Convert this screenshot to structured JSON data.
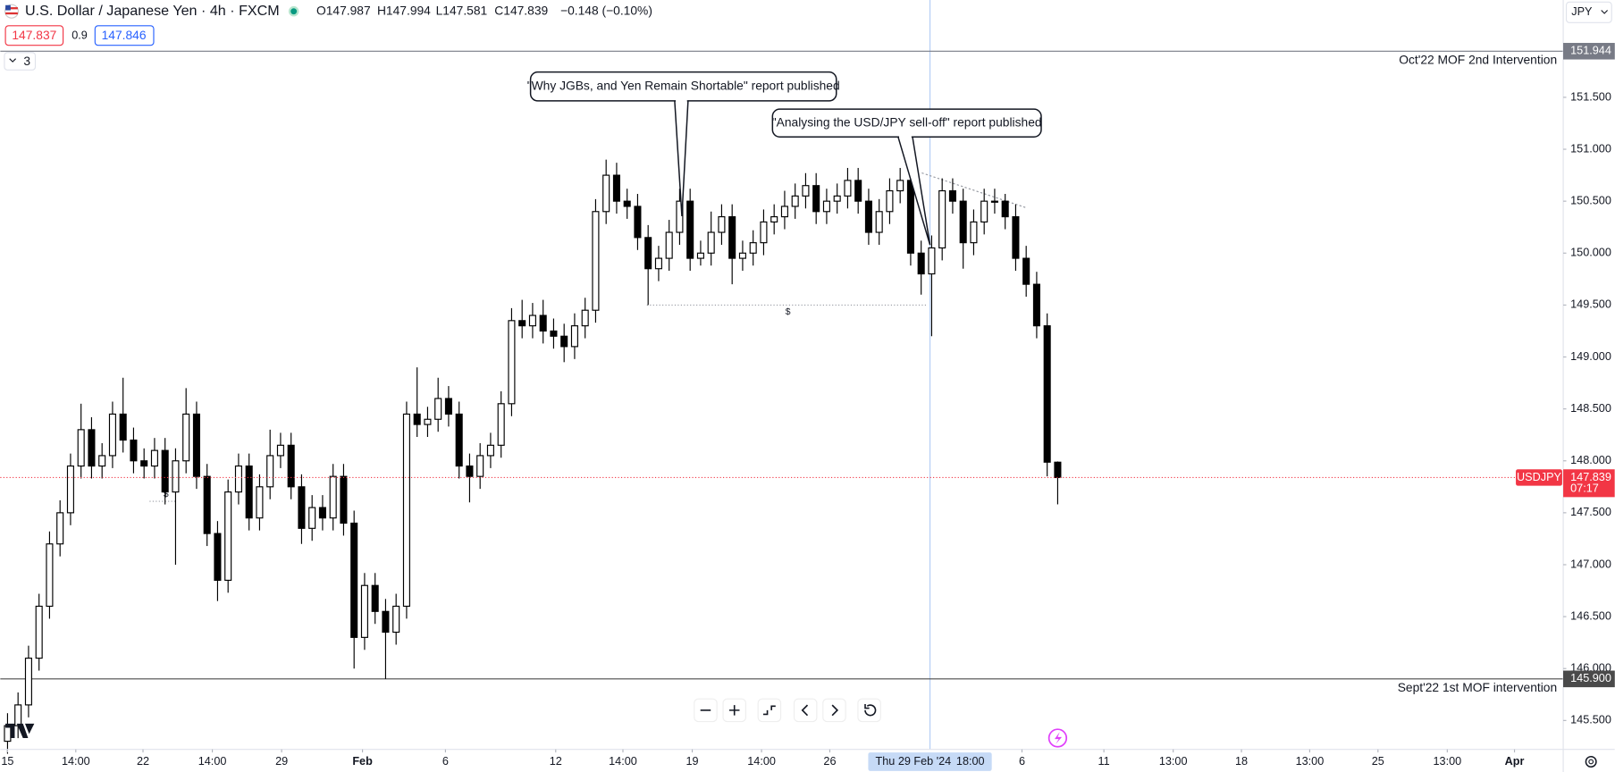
{
  "chart_data": {
    "type": "candlestick",
    "title": "U.S. Dollar / Japanese Yen · 4h · FXCM",
    "ohlc_text": [
      "O147.987",
      "H147.994",
      "L147.581",
      "C147.839",
      "−0.148 (−0.10%)"
    ],
    "quote_buttons": [
      "147.837",
      "0.9",
      "147.846"
    ],
    "indicator_count": "3",
    "currency": "JPY",
    "up_color": "#ffffff",
    "down_color": "#000000",
    "wick_color": "#000000",
    "open": [
      145.3,
      145.45,
      145.65,
      146.1,
      146.6,
      147.2,
      147.5,
      147.95,
      148.3,
      147.95,
      148.05,
      148.45,
      148.2,
      148.0,
      147.95,
      148.1,
      147.7,
      148.0,
      148.45,
      147.85,
      147.3,
      146.85,
      147.7,
      147.95,
      147.45,
      147.75,
      148.05,
      148.15,
      147.75,
      147.35,
      147.55,
      147.45,
      147.85,
      147.4,
      146.3,
      146.8,
      146.55,
      146.35,
      146.6,
      148.45,
      148.35,
      148.4,
      148.6,
      148.45,
      147.95,
      147.85,
      148.05,
      148.15,
      148.55,
      149.35,
      149.3,
      149.4,
      149.25,
      149.2,
      149.1,
      149.3,
      149.45,
      150.4,
      150.75,
      150.5,
      150.45,
      150.15,
      149.85,
      149.95,
      150.2,
      150.5,
      149.95,
      150.0,
      150.2,
      150.35,
      149.95,
      150.0,
      150.1,
      150.3,
      150.35,
      150.45,
      150.55,
      150.65,
      150.4,
      150.5,
      150.55,
      150.7,
      150.5,
      150.2,
      150.4,
      150.6,
      150.7,
      150.0,
      149.8,
      150.05,
      150.6,
      150.5,
      150.1,
      150.3,
      150.5,
      150.5,
      150.35,
      149.95,
      149.7,
      149.3,
      147.987
    ],
    "high": [
      145.57,
      145.77,
      146.22,
      146.72,
      147.32,
      147.62,
      148.07,
      148.55,
      148.42,
      148.17,
      148.57,
      148.8,
      148.32,
      148.12,
      148.22,
      148.22,
      148.12,
      148.7,
      148.57,
      147.97,
      147.42,
      147.82,
      148.07,
      148.07,
      147.87,
      148.3,
      148.27,
      148.27,
      147.87,
      147.67,
      147.67,
      147.97,
      147.97,
      147.52,
      146.92,
      146.92,
      146.67,
      146.72,
      148.57,
      148.9,
      148.52,
      148.8,
      148.72,
      148.57,
      148.07,
      148.17,
      148.27,
      148.67,
      149.47,
      149.55,
      149.52,
      149.55,
      149.37,
      149.32,
      149.42,
      149.57,
      150.52,
      150.9,
      150.87,
      150.62,
      150.57,
      150.27,
      150.07,
      150.32,
      150.62,
      150.62,
      150.12,
      150.4,
      150.47,
      150.47,
      150.12,
      150.22,
      150.42,
      150.47,
      150.6,
      150.67,
      150.77,
      150.77,
      150.62,
      150.67,
      150.82,
      150.82,
      150.62,
      150.52,
      150.72,
      150.82,
      150.82,
      150.12,
      150.17,
      150.72,
      150.72,
      150.62,
      150.42,
      150.62,
      150.62,
      150.57,
      150.47,
      150.07,
      149.82,
      149.42,
      147.994
    ],
    "low": [
      145.18,
      145.33,
      145.53,
      145.98,
      146.48,
      147.08,
      147.38,
      147.83,
      147.83,
      147.83,
      147.93,
      148.08,
      147.88,
      147.83,
      147.83,
      147.58,
      147.0,
      147.88,
      147.73,
      147.18,
      146.65,
      146.73,
      147.58,
      147.33,
      147.33,
      147.63,
      147.93,
      147.63,
      147.2,
      147.23,
      147.33,
      147.33,
      147.28,
      146.0,
      146.18,
      146.43,
      145.9,
      146.23,
      146.48,
      148.23,
      148.23,
      148.28,
      148.33,
      147.83,
      147.6,
      147.73,
      147.93,
      148.03,
      148.43,
      149.18,
      149.18,
      149.13,
      149.08,
      148.95,
      148.98,
      149.18,
      149.33,
      150.28,
      150.38,
      150.33,
      150.03,
      149.5,
      149.73,
      149.83,
      150.08,
      149.83,
      149.88,
      149.88,
      150.08,
      149.7,
      149.83,
      149.88,
      149.98,
      150.18,
      150.23,
      150.33,
      150.43,
      150.28,
      150.28,
      150.38,
      150.43,
      150.38,
      150.08,
      150.08,
      150.28,
      150.48,
      149.88,
      149.6,
      149.2,
      149.93,
      150.38,
      149.85,
      149.98,
      150.18,
      150.38,
      150.23,
      149.83,
      149.58,
      149.18,
      147.85,
      147.581
    ],
    "close": [
      145.45,
      145.65,
      146.1,
      146.6,
      147.2,
      147.5,
      147.95,
      148.3,
      147.95,
      148.05,
      148.45,
      148.2,
      148.0,
      147.95,
      148.1,
      147.7,
      148.0,
      148.45,
      147.85,
      147.3,
      146.85,
      147.7,
      147.95,
      147.45,
      147.75,
      148.05,
      148.15,
      147.75,
      147.35,
      147.55,
      147.45,
      147.85,
      147.4,
      146.3,
      146.8,
      146.55,
      146.35,
      146.6,
      148.45,
      148.35,
      148.4,
      148.6,
      148.45,
      147.95,
      147.85,
      148.05,
      148.15,
      148.55,
      149.35,
      149.3,
      149.4,
      149.25,
      149.2,
      149.1,
      149.3,
      149.45,
      150.4,
      150.75,
      150.5,
      150.45,
      150.15,
      149.85,
      149.95,
      150.2,
      150.5,
      149.95,
      150.0,
      150.2,
      150.35,
      149.95,
      150.0,
      150.1,
      150.3,
      150.35,
      150.45,
      150.55,
      150.65,
      150.4,
      150.5,
      150.55,
      150.7,
      150.5,
      150.2,
      150.4,
      150.6,
      150.7,
      150.0,
      149.8,
      150.05,
      150.6,
      150.5,
      150.1,
      150.3,
      150.5,
      150.5,
      150.35,
      149.95,
      149.7,
      149.3,
      147.987,
      147.839
    ],
    "xlim": [
      -0.69,
      148.14
    ],
    "xticks": [
      {
        "value": 0,
        "label": "15"
      },
      {
        "value": 6.5,
        "label": "14:00"
      },
      {
        "value": 12.9,
        "label": "22"
      },
      {
        "value": 19.5,
        "label": "14:00"
      },
      {
        "value": 26.1,
        "label": "29"
      },
      {
        "value": 33.8,
        "label": "Feb"
      },
      {
        "value": 41.7,
        "label": "6"
      },
      {
        "value": 52.2,
        "label": "12"
      },
      {
        "value": 58.6,
        "label": "14:00"
      },
      {
        "value": 65.2,
        "label": "19"
      },
      {
        "value": 71.8,
        "label": "14:00"
      },
      {
        "value": 78.3,
        "label": "26"
      },
      {
        "value": 96.6,
        "label": "6"
      },
      {
        "value": 104.4,
        "label": "11"
      },
      {
        "value": 111,
        "label": "13:00"
      },
      {
        "value": 117.5,
        "label": "18"
      },
      {
        "value": 124,
        "label": "13:00"
      },
      {
        "value": 130.5,
        "label": "25"
      },
      {
        "value": 137.1,
        "label": "13:00"
      },
      {
        "value": 143.5,
        "label": "Apr"
      }
    ],
    "ylim": [
      145.222,
      152.437
    ],
    "yticks": [
      {
        "value": 145.5,
        "label": "145.500"
      },
      {
        "value": 146,
        "label": "146.000"
      },
      {
        "value": 146.5,
        "label": "146.500"
      },
      {
        "value": 147,
        "label": "147.000"
      },
      {
        "value": 147.5,
        "label": "147.500"
      },
      {
        "value": 148,
        "label": "148.000"
      },
      {
        "value": 148.5,
        "label": "148.500"
      },
      {
        "value": 149,
        "label": "149.000"
      },
      {
        "value": 149.5,
        "label": "149.500"
      },
      {
        "value": 150,
        "label": "150.000"
      },
      {
        "value": 150.5,
        "label": "150.500"
      },
      {
        "value": 151,
        "label": "151.000"
      },
      {
        "value": 151.5,
        "label": "151.500"
      }
    ],
    "crosshair": {
      "value": 87.84,
      "label": [
        "Thu 29 Feb '24",
        "18:00"
      ]
    },
    "hlines": [
      {
        "value": 151.944,
        "label": "151.944",
        "text": "Oct'22 MOF 2nd Intervention",
        "color": "#787b86"
      },
      {
        "value": 145.9,
        "label": "145.900",
        "text": "Sept'22 1st MOF intervention",
        "color": "#4a4a4a"
      }
    ],
    "last_price": {
      "value": 147.839,
      "label": "147.839",
      "symbol": "USDJPY",
      "countdown": "07:17",
      "color": "#f23645"
    },
    "liquidity": [
      {
        "value": 149.5,
        "label": "$"
      },
      {
        "value": 147.61,
        "label": "$"
      }
    ],
    "annotations": [
      {
        "text": "\"Why JGBs, and Yen Remain Shortable\" report published"
      },
      {
        "text": "\"Analysing the USD/JPY sell-off\" report published"
      }
    ]
  }
}
